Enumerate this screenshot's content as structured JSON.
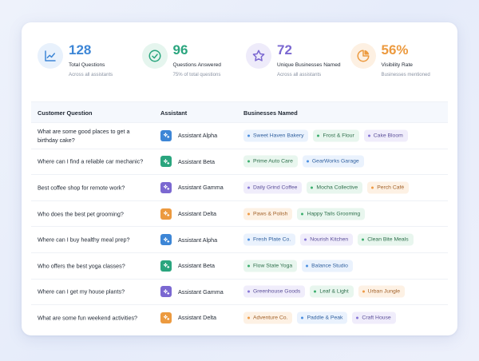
{
  "colors": {
    "blue": "#3d86d6",
    "teal": "#2aa57e",
    "purple": "#7b68d1",
    "orange": "#ec9a3f"
  },
  "stats": [
    {
      "icon": "trend-chart-icon",
      "value": "128",
      "label": "Total Questions",
      "sub": "Across all assistants",
      "color": "#3d86d6",
      "bg": "#e8f1fc"
    },
    {
      "icon": "check-circle-icon",
      "value": "96",
      "label": "Questions Answered",
      "sub": "75% of total questions",
      "color": "#2aa57e",
      "bg": "#e5f5ee"
    },
    {
      "icon": "star-icon",
      "value": "72",
      "label": "Unique Businesses Named",
      "sub": "Across all assistants",
      "color": "#7b68d1",
      "bg": "#eeebfa"
    },
    {
      "icon": "pie-chart-icon",
      "value": "56%",
      "label": "Visibility Rate",
      "sub": "Businesses mentioned",
      "color": "#ec9a3f",
      "bg": "#fdf0e2"
    }
  ],
  "table": {
    "headers": {
      "question": "Customer Question",
      "assistant": "Assistant",
      "businesses": "Businesses Named"
    },
    "rows": [
      {
        "question": "What are some good places to get a birthday cake?",
        "assistant": "Assistant Alpha",
        "asst_color": "blue",
        "businesses": [
          {
            "name": "Sweet Haven Bakery",
            "color": "blue"
          },
          {
            "name": "Frost & Flour",
            "color": "green"
          },
          {
            "name": "Cake Bloom",
            "color": "purple"
          }
        ]
      },
      {
        "question": "Where can I find a reliable car mechanic?",
        "assistant": "Assistant Beta",
        "asst_color": "teal",
        "businesses": [
          {
            "name": "Prime Auto Care",
            "color": "green"
          },
          {
            "name": "GearWorks Garage",
            "color": "blue"
          }
        ]
      },
      {
        "question": "Best coffee shop for remote work?",
        "assistant": "Assistant Gamma",
        "asst_color": "purple",
        "businesses": [
          {
            "name": "Daily Grind Coffee",
            "color": "purple"
          },
          {
            "name": "Mocha Collective",
            "color": "green"
          },
          {
            "name": "Perch Café",
            "color": "orange"
          }
        ]
      },
      {
        "question": "Who does the best pet grooming?",
        "assistant": "Assistant Delta",
        "asst_color": "orange",
        "businesses": [
          {
            "name": "Paws & Polish",
            "color": "orange"
          },
          {
            "name": "Happy Tails Grooming",
            "color": "green"
          }
        ]
      },
      {
        "question": "Where can I buy healthy meal prep?",
        "assistant": "Assistant Alpha",
        "asst_color": "blue",
        "businesses": [
          {
            "name": "Fresh Plate Co.",
            "color": "blue"
          },
          {
            "name": "Nourish Kitchen",
            "color": "purple"
          },
          {
            "name": "Clean Bite Meals",
            "color": "green"
          }
        ]
      },
      {
        "question": "Who offers the best yoga classes?",
        "assistant": "Assistant Beta",
        "asst_color": "teal",
        "businesses": [
          {
            "name": "Flow State Yoga",
            "color": "green"
          },
          {
            "name": "Balance Studio",
            "color": "blue"
          }
        ]
      },
      {
        "question": "Where can I get my house plants?",
        "assistant": "Assistant Gamma",
        "asst_color": "purple",
        "businesses": [
          {
            "name": "Greenhouse Goods",
            "color": "purple"
          },
          {
            "name": "Leaf & Light",
            "color": "green"
          },
          {
            "name": "Urban Jungle",
            "color": "orange"
          }
        ]
      },
      {
        "question": "What are some fun weekend activities?",
        "assistant": "Assistant Delta",
        "asst_color": "orange",
        "businesses": [
          {
            "name": "Adventure Co.",
            "color": "orange"
          },
          {
            "name": "Paddle & Peak",
            "color": "blue"
          },
          {
            "name": "Craft House",
            "color": "purple"
          }
        ]
      }
    ]
  }
}
